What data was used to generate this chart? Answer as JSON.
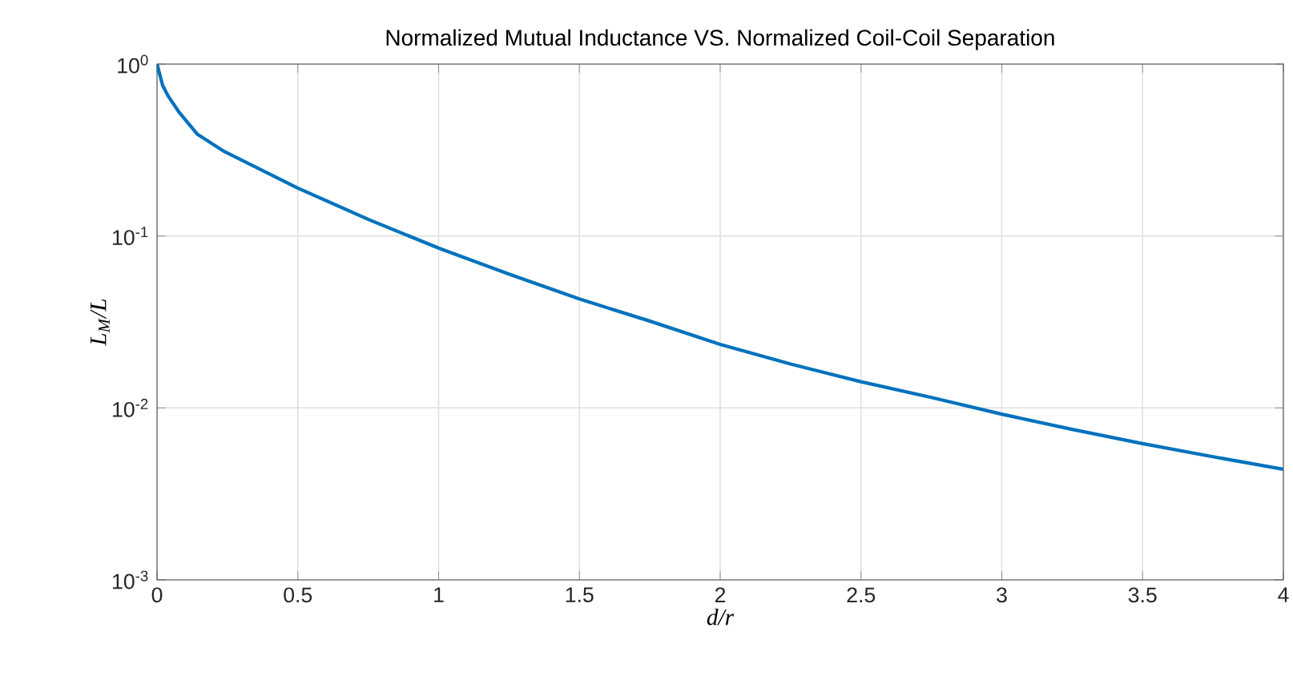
{
  "chart_data": {
    "type": "line",
    "title": "Normalized Mutual Inductance VS. Normalized Coil-Coil Separation",
    "xlabel": "d/r",
    "ylabel": "L$_{M}$/L",
    "x": [
      0,
      0.02,
      0.04,
      0.08,
      0.144,
      0.239,
      0.5,
      0.75,
      1.0,
      1.25,
      1.5,
      1.75,
      2.0,
      2.25,
      2.5,
      2.75,
      3.0,
      3.25,
      3.5,
      3.75,
      4.0
    ],
    "series": [
      {
        "color": "#0072bd",
        "values": [
          1,
          0.75,
          0.65,
          0.52,
          0.39,
          0.31,
          0.19,
          0.125,
          0.085,
          0.06,
          0.043,
          0.032,
          0.0234,
          0.018,
          0.0142,
          0.0115,
          0.0092,
          0.0075,
          0.0062,
          0.0052,
          0.0044
        ]
      }
    ],
    "log": "y",
    "grid": true,
    "xlim": [
      0,
      4
    ],
    "ylim": [
      0.001,
      1
    ],
    "xticks": [
      0,
      0.5,
      1,
      1.5,
      2,
      2.5,
      3,
      3.5,
      4
    ],
    "yticks": [
      {
        "value": 0.001,
        "label": "10$^{-3}$"
      },
      {
        "value": 0.01,
        "label": "10$^{-2}$"
      },
      {
        "value": 0.1,
        "label": "10$^{-1}$"
      },
      {
        "value": 1,
        "label": "10$^{0}$"
      }
    ],
    "line_style": "solid",
    "marker": "none"
  }
}
